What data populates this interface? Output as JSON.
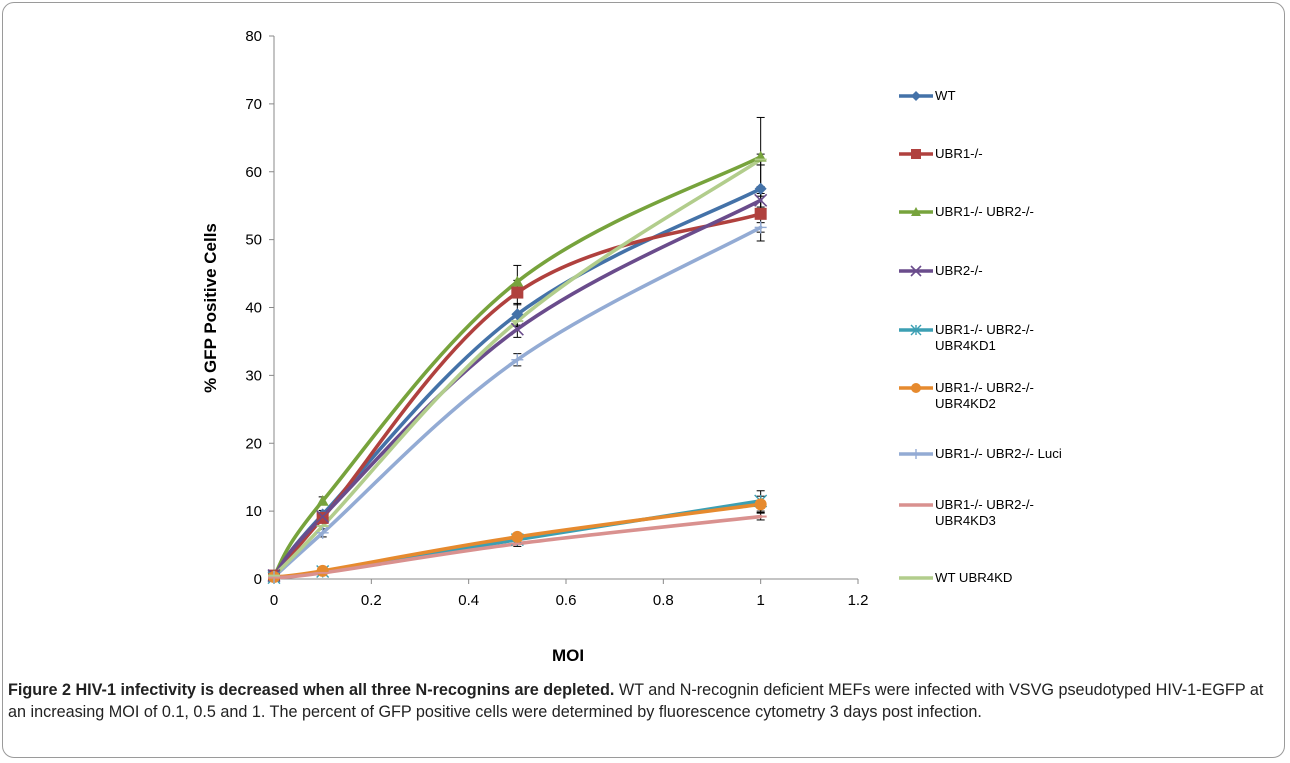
{
  "chart_data": {
    "type": "line",
    "xlabel": "MOI",
    "ylabel": "% GFP Positive Cells",
    "xlim": [
      0,
      1.2
    ],
    "ylim": [
      0,
      80
    ],
    "xticks": [
      0,
      0.2,
      0.4,
      0.6,
      0.8,
      1,
      1.2
    ],
    "xtick_labels": [
      "0",
      "0.2",
      "0.4",
      "0.6",
      "0.8",
      "1",
      "1.2"
    ],
    "yticks": [
      0,
      10,
      20,
      30,
      40,
      50,
      60,
      70,
      80
    ],
    "ytick_labels": [
      "0",
      "10",
      "20",
      "30",
      "40",
      "50",
      "60",
      "70",
      "80"
    ],
    "grid": false,
    "legend_position": "right",
    "x": [
      0,
      0.1,
      0.5,
      1
    ],
    "series": [
      {
        "name": "WT",
        "color": "#4472a8",
        "marker": "diamond",
        "values": [
          0.5,
          9.5,
          39,
          57.5
        ],
        "err": [
          0,
          0.6,
          1.6,
          3.5
        ]
      },
      {
        "name": "UBR1-/-",
        "color": "#b0413e",
        "marker": "square",
        "values": [
          0.5,
          9.0,
          42.2,
          53.8
        ],
        "err": [
          0,
          0.5,
          1.8,
          4.0
        ]
      },
      {
        "name": "UBR1-/- UBR2-/-",
        "color": "#77a33c",
        "marker": "triangle",
        "values": [
          0.5,
          11.5,
          43.8,
          62.2
        ],
        "err": [
          0,
          0.6,
          2.4,
          5.8
        ]
      },
      {
        "name": "UBR2-/-",
        "color": "#6a4c8c",
        "marker": "x",
        "values": [
          0.5,
          9.2,
          36.8,
          55.8
        ],
        "err": [
          0,
          0.5,
          1.2,
          1.0
        ]
      },
      {
        "name": "UBR1-/- UBR2-/-\nUBR4KD1",
        "color": "#3c9fb3",
        "marker": "star",
        "values": [
          0.2,
          1.1,
          5.8,
          11.5
        ],
        "err": [
          0,
          0.3,
          0.6,
          1.5
        ]
      },
      {
        "name": "UBR1-/- UBR2-/-\nUBR4KD2",
        "color": "#e68a2e",
        "marker": "circle",
        "values": [
          0.3,
          1.2,
          6.2,
          11.0
        ],
        "err": [
          0,
          0.3,
          0.5,
          1.2
        ]
      },
      {
        "name": "UBR1-/- UBR2-/- Luci",
        "color": "#93abd4",
        "marker": "plus",
        "values": [
          0.3,
          6.8,
          32.3,
          51.8
        ],
        "err": [
          0,
          0.6,
          0.9,
          0.7
        ]
      },
      {
        "name": "UBR1-/- UBR2-/-\nUBR4KD3",
        "color": "#d9918f",
        "marker": "dash",
        "values": [
          0.2,
          0.9,
          5.2,
          9.2
        ],
        "err": [
          0,
          0.2,
          0.4,
          0.5
        ]
      },
      {
        "name": "WT UBR4KD",
        "color": "#b2cd8c",
        "marker": "dash",
        "values": [
          0.5,
          7.8,
          38.0,
          61.8
        ],
        "err": [
          0,
          0.5,
          0.8,
          0.8
        ]
      }
    ]
  },
  "caption": {
    "title": "Figure 2 HIV-1 infectivity is decreased when all three N-recognins are depleted.",
    "body": " WT and N-recognin deficient MEFs were infected with VSVG pseudotyped HIV-1-EGFP at an increasing MOI of 0.1, 0.5 and 1. The percent of GFP positive cells were determined by fluorescence cytometry 3 days post infection."
  }
}
